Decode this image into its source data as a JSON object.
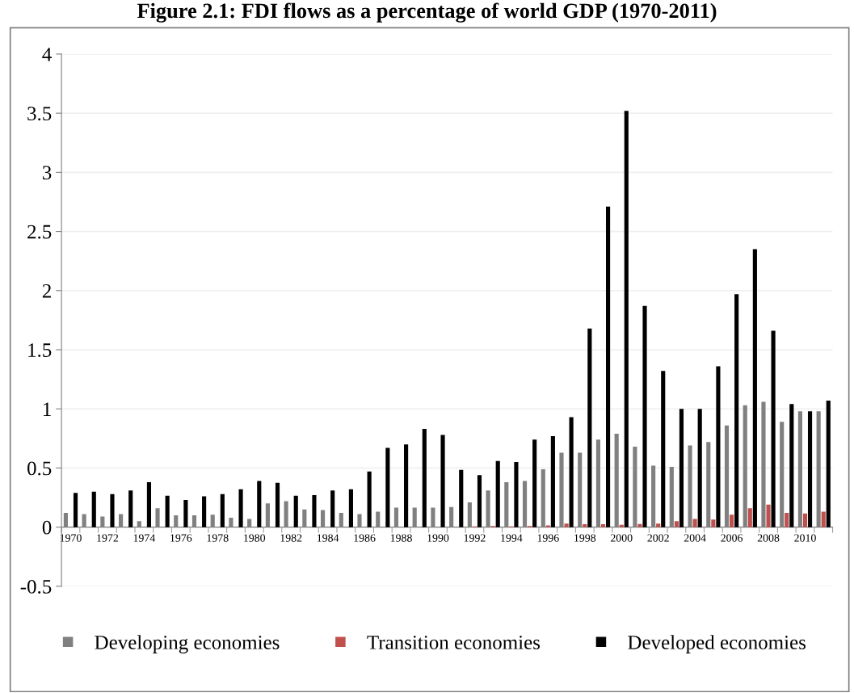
{
  "chart_data": {
    "type": "bar",
    "title": "Figure 2.1: FDI flows as a percentage of world GDP (1970-2011)",
    "categories": [
      "1970",
      null,
      "1972",
      null,
      "1974",
      null,
      "1976",
      null,
      "1978",
      null,
      "1980",
      null,
      "1982",
      null,
      "1984",
      null,
      "1986",
      null,
      "1988",
      null,
      "1990",
      null,
      "1992",
      null,
      "1994",
      null,
      "1996",
      null,
      "1998",
      null,
      "2000",
      null,
      "2002",
      null,
      "2004",
      null,
      "2006",
      null,
      "2008",
      null,
      "2010",
      null
    ],
    "series": [
      {
        "name": "Developing economies",
        "color": "#808080",
        "values": [
          0.12,
          0.11,
          0.09,
          0.11,
          0.05,
          0.16,
          0.1,
          0.1,
          0.105,
          0.08,
          0.07,
          0.2,
          0.22,
          0.15,
          0.145,
          0.12,
          0.11,
          0.13,
          0.165,
          0.165,
          0.165,
          0.17,
          0.21,
          0.31,
          0.38,
          0.39,
          0.49,
          0.63,
          0.63,
          0.74,
          0.79,
          0.68,
          0.52,
          0.51,
          0.69,
          0.72,
          0.86,
          1.03,
          1.06,
          0.89,
          0.98,
          0.98
        ]
      },
      {
        "name": "Transition economies",
        "color": "#c0504d",
        "values": [
          null,
          null,
          null,
          null,
          null,
          null,
          null,
          null,
          null,
          null,
          null,
          null,
          null,
          null,
          null,
          null,
          null,
          null,
          null,
          null,
          null,
          null,
          0.007,
          0.01,
          0.007,
          0.01,
          0.015,
          0.03,
          0.025,
          0.025,
          0.02,
          0.027,
          0.03,
          0.05,
          0.07,
          0.065,
          0.105,
          0.16,
          0.19,
          0.12,
          0.115,
          0.13
        ]
      },
      {
        "name": "Developed economies",
        "color": "#000000",
        "values": [
          0.29,
          0.3,
          0.28,
          0.31,
          0.38,
          0.265,
          0.23,
          0.26,
          0.28,
          0.32,
          0.39,
          0.375,
          0.265,
          0.27,
          0.31,
          0.32,
          0.47,
          0.67,
          0.7,
          0.83,
          0.78,
          0.485,
          0.44,
          0.56,
          0.55,
          0.74,
          0.77,
          0.93,
          1.68,
          2.71,
          3.52,
          1.87,
          1.32,
          1.0,
          1.0,
          1.36,
          1.97,
          2.35,
          1.66,
          1.04,
          0.98,
          1.07
        ]
      }
    ],
    "ylim": [
      -0.5,
      4
    ],
    "yticks": [
      -0.5,
      0,
      0.5,
      1,
      1.5,
      2,
      2.5,
      3,
      3.5,
      4
    ],
    "grid": "y",
    "legend": "bottom"
  }
}
